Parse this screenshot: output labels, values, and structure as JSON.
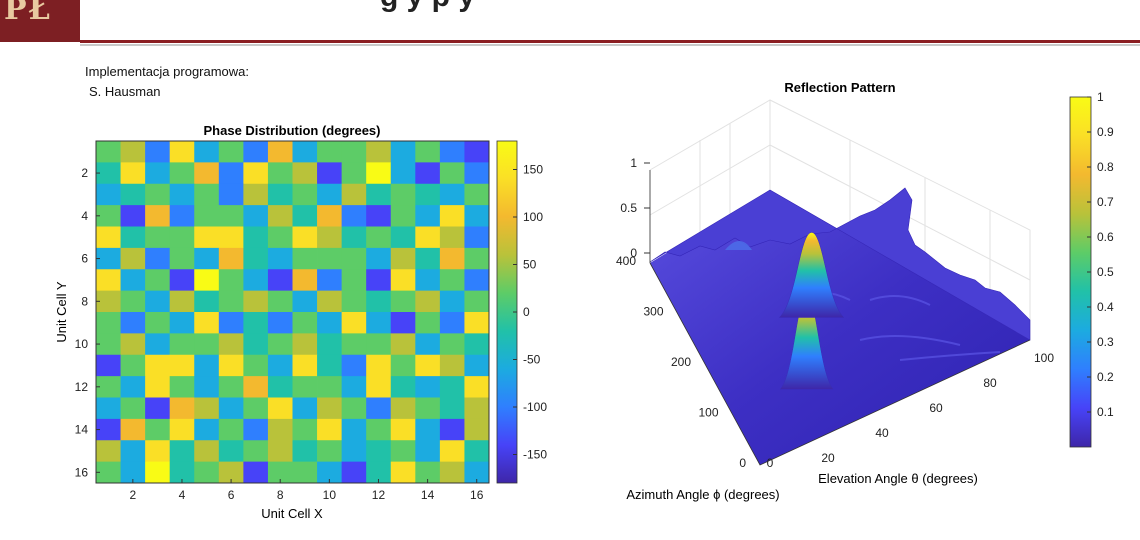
{
  "header": {
    "logo_text": "PŁ",
    "title_fragment": "g y p y"
  },
  "notes": {
    "line1": "Implementacja programowa:",
    "line2": "S. Hausman"
  },
  "chart_data": [
    {
      "type": "heatmap",
      "title": "Phase Distribution (degrees)",
      "xlabel": "Unit Cell X",
      "ylabel": "Unit Cell Y",
      "x_ticks": [
        2,
        4,
        6,
        8,
        10,
        12,
        14,
        16
      ],
      "y_ticks": [
        2,
        4,
        6,
        8,
        10,
        12,
        14,
        16
      ],
      "xlim": [
        0.5,
        16.5
      ],
      "ylim": [
        0.5,
        16.5
      ],
      "colorbar": {
        "min": -180,
        "max": 180,
        "ticks": [
          150,
          100,
          50,
          0,
          -50,
          -100,
          -150
        ]
      },
      "colormap": [
        "#3e26a8",
        "#4743f8",
        "#2f7ffe",
        "#1cabe0",
        "#21c1a8",
        "#5dcc67",
        "#b9c23a",
        "#f3b92f",
        "#fadf26",
        "#f9fb15"
      ],
      "values": [
        [
          0,
          60,
          -120,
          120,
          -60,
          30,
          -120,
          90,
          -60,
          0,
          30,
          60,
          -60,
          0,
          -90,
          -150
        ],
        [
          -30,
          150,
          -60,
          30,
          90,
          -120,
          150,
          0,
          60,
          -150,
          30,
          170,
          -60,
          -150,
          30,
          -90
        ],
        [
          -60,
          -30,
          30,
          -60,
          0,
          -90,
          60,
          -30,
          0,
          -60,
          60,
          -30,
          30,
          -30,
          -60,
          0
        ],
        [
          0,
          -150,
          90,
          -90,
          30,
          0,
          -60,
          60,
          -30,
          90,
          -90,
          -150,
          0,
          -60,
          150,
          -60
        ],
        [
          150,
          -30,
          0,
          30,
          150,
          120,
          -30,
          0,
          150,
          60,
          -30,
          0,
          -30,
          150,
          60,
          -90
        ],
        [
          -60,
          60,
          -90,
          0,
          -60,
          90,
          -30,
          -60,
          30,
          0,
          30,
          -60,
          60,
          -30,
          90,
          0
        ],
        [
          120,
          -60,
          30,
          -150,
          170,
          30,
          -60,
          -150,
          100,
          -90,
          30,
          -150,
          120,
          -60,
          30,
          -120
        ],
        [
          60,
          0,
          -60,
          60,
          -30,
          0,
          60,
          30,
          -60,
          60,
          0,
          -30,
          0,
          60,
          -60,
          30
        ],
        [
          30,
          -120,
          0,
          -60,
          120,
          -90,
          -30,
          -120,
          30,
          -60,
          120,
          -60,
          -150,
          30,
          -90,
          120
        ],
        [
          0,
          60,
          -60,
          30,
          0,
          60,
          -30,
          0,
          60,
          -30,
          0,
          30,
          60,
          -60,
          30,
          -30
        ],
        [
          -150,
          30,
          120,
          150,
          -60,
          150,
          30,
          -60,
          120,
          -30,
          -120,
          150,
          30,
          120,
          60,
          -60
        ],
        [
          0,
          -60,
          120,
          30,
          -60,
          0,
          90,
          -30,
          30,
          0,
          -60,
          120,
          -30,
          -60,
          -30,
          120
        ],
        [
          -60,
          0,
          -150,
          90,
          60,
          -60,
          0,
          120,
          -60,
          60,
          0,
          -90,
          60,
          0,
          -30,
          60
        ],
        [
          -150,
          90,
          30,
          120,
          -60,
          30,
          -120,
          60,
          30,
          150,
          -60,
          30,
          120,
          -60,
          -150,
          60
        ],
        [
          60,
          -60,
          120,
          -30,
          60,
          -30,
          0,
          60,
          -30,
          0,
          -60,
          -30,
          0,
          -60,
          150,
          -30
        ],
        [
          0,
          -60,
          170,
          -30,
          0,
          60,
          -160,
          0,
          30,
          -60,
          -160,
          -30,
          120,
          0,
          60,
          -60
        ]
      ]
    },
    {
      "type": "surface",
      "title": "Reflection Pattern",
      "xlabel": "Elevation Angle θ (degrees)",
      "ylabel": "Azimuth Angle ϕ (degrees)",
      "zlabel": "",
      "x_ticks": [
        0,
        20,
        40,
        60,
        80,
        100
      ],
      "y_ticks": [
        0,
        100,
        200,
        300,
        400
      ],
      "z_ticks": [
        0,
        0.5,
        1
      ],
      "xlim": [
        0,
        100
      ],
      "ylim": [
        0,
        400
      ],
      "zlim": [
        0,
        1
      ],
      "colorbar": {
        "min": 0,
        "max": 1,
        "ticks": [
          1,
          0.9,
          0.8,
          0.7,
          0.6,
          0.5,
          0.4,
          0.3,
          0.2,
          0.1
        ]
      },
      "peaks": [
        {
          "theta": 27,
          "phi": 95,
          "value": 0.95
        },
        {
          "theta": 40,
          "phi": 205,
          "value": 0.85
        }
      ],
      "background_level": 0.1
    }
  ]
}
